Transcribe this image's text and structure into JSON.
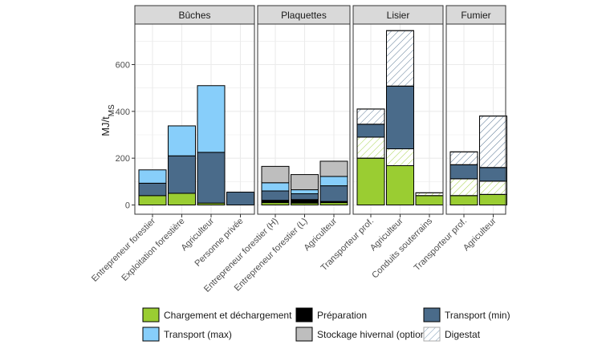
{
  "chart_data": {
    "type": "bar",
    "stacked": true,
    "faceted": true,
    "ylabel_main": "MJ/t",
    "ylabel_sub": "MS",
    "ylim": [
      0,
      760
    ],
    "yticks": [
      0,
      200,
      400,
      600
    ],
    "grid": true,
    "colors": {
      "charge": "#9acd32",
      "prep": "#000000",
      "tmin": "#4a6b8a",
      "tmax": "#87cefa",
      "stock": "#bebebe",
      "digestat_stroke": "#5f86a6",
      "panel_header_bg": "#d9d9d9",
      "grid": "#ebebeb"
    },
    "legend": {
      "position": "bottom",
      "items": [
        {
          "key": "charge",
          "label": "Chargement et déchargement"
        },
        {
          "key": "prep",
          "label": "Préparation"
        },
        {
          "key": "tmin",
          "label": "Transport (min)"
        },
        {
          "key": "tmax",
          "label": "Transport (max)"
        },
        {
          "key": "stock",
          "label": "Stockage hivernal (optionel)"
        },
        {
          "key": "digestat",
          "label": "Digestat"
        }
      ]
    },
    "facets": [
      {
        "title": "Bûches",
        "bars": [
          {
            "category": "Entrepreneur forestier",
            "segments": [
              {
                "key": "charge",
                "value": 40,
                "hatch": false
              },
              {
                "key": "tmin",
                "value": 53,
                "hatch": false
              },
              {
                "key": "tmax",
                "value": 57,
                "hatch": false
              }
            ]
          },
          {
            "category": "Exploitation forestière",
            "segments": [
              {
                "key": "charge",
                "value": 50,
                "hatch": false
              },
              {
                "key": "tmin",
                "value": 160,
                "hatch": false
              },
              {
                "key": "tmax",
                "value": 128,
                "hatch": false
              }
            ]
          },
          {
            "category": "Agriculteur",
            "segments": [
              {
                "key": "charge",
                "value": 8,
                "hatch": false
              },
              {
                "key": "tmin",
                "value": 217,
                "hatch": false
              },
              {
                "key": "tmax",
                "value": 285,
                "hatch": false
              }
            ]
          },
          {
            "category": "Personne privée",
            "segments": [
              {
                "key": "tmin",
                "value": 55,
                "hatch": false
              }
            ]
          }
        ]
      },
      {
        "title": "Plaquettes",
        "bars": [
          {
            "category": "Entrepreneur forestier (H)",
            "segments": [
              {
                "key": "charge",
                "value": 10,
                "hatch": false
              },
              {
                "key": "prep",
                "value": 10,
                "hatch": false
              },
              {
                "key": "tmin",
                "value": 40,
                "hatch": false
              },
              {
                "key": "tmax",
                "value": 35,
                "hatch": false
              },
              {
                "key": "stock",
                "value": 70,
                "hatch": false
              }
            ]
          },
          {
            "category": "Entrepreneur forestier (L)",
            "segments": [
              {
                "key": "charge",
                "value": 8,
                "hatch": false
              },
              {
                "key": "prep",
                "value": 15,
                "hatch": false
              },
              {
                "key": "tmin",
                "value": 25,
                "hatch": false
              },
              {
                "key": "tmax",
                "value": 17,
                "hatch": false
              },
              {
                "key": "stock",
                "value": 65,
                "hatch": false
              }
            ]
          },
          {
            "category": "Agriculteur",
            "segments": [
              {
                "key": "charge",
                "value": 10,
                "hatch": false
              },
              {
                "key": "prep",
                "value": 5,
                "hatch": false
              },
              {
                "key": "tmin",
                "value": 67,
                "hatch": false
              },
              {
                "key": "tmax",
                "value": 40,
                "hatch": false
              },
              {
                "key": "stock",
                "value": 65,
                "hatch": false
              }
            ]
          }
        ]
      },
      {
        "title": "Lisier",
        "bars": [
          {
            "category": "Transporteur prof.",
            "segments": [
              {
                "key": "charge",
                "value": 200,
                "hatch": false
              },
              {
                "key": "charge",
                "value": 90,
                "hatch": true
              },
              {
                "key": "tmin",
                "value": 55,
                "hatch": false
              },
              {
                "key": "tmin",
                "value": 65,
                "hatch": true
              }
            ]
          },
          {
            "category": "Agriculteur",
            "segments": [
              {
                "key": "charge",
                "value": 168,
                "hatch": false
              },
              {
                "key": "charge",
                "value": 72,
                "hatch": true
              },
              {
                "key": "tmin",
                "value": 268,
                "hatch": false
              },
              {
                "key": "tmin",
                "value": 237,
                "hatch": true
              }
            ]
          },
          {
            "category": "Conduits souterrains",
            "segments": [
              {
                "key": "charge",
                "value": 40,
                "hatch": false
              },
              {
                "key": "charge",
                "value": 12,
                "hatch": true
              }
            ]
          }
        ]
      },
      {
        "title": "Fumier",
        "bars": [
          {
            "category": "Transporteur prof.",
            "segments": [
              {
                "key": "charge",
                "value": 40,
                "hatch": false
              },
              {
                "key": "charge",
                "value": 72,
                "hatch": true
              },
              {
                "key": "tmin",
                "value": 60,
                "hatch": false
              },
              {
                "key": "tmin",
                "value": 55,
                "hatch": true
              }
            ]
          },
          {
            "category": "Agriculteur",
            "segments": [
              {
                "key": "charge",
                "value": 45,
                "hatch": false
              },
              {
                "key": "charge",
                "value": 57,
                "hatch": true
              },
              {
                "key": "tmin",
                "value": 58,
                "hatch": false
              },
              {
                "key": "tmin",
                "value": 220,
                "hatch": true
              }
            ]
          }
        ]
      }
    ]
  }
}
